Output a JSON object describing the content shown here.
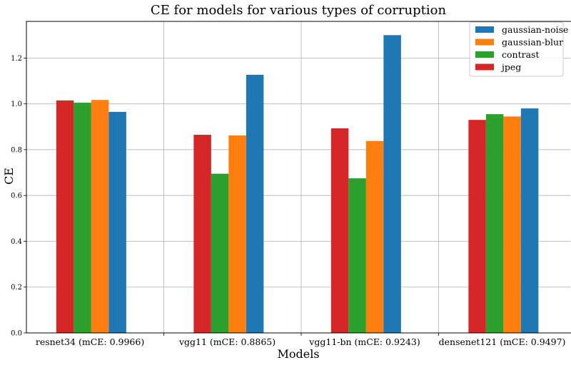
{
  "chart_data": {
    "type": "bar",
    "title": "CE for models for various types of corruption",
    "xlabel": "Models",
    "ylabel": "CE",
    "ylim": [
      0,
      1.36
    ],
    "yticks": [
      "0.0",
      "0.2",
      "0.4",
      "0.6",
      "0.8",
      "1.0",
      "1.2"
    ],
    "grid": true,
    "legend_position": "top-right",
    "categories": [
      "resnet34 (mCE: 0.9966)",
      "vgg11 (mCE: 0.8865)",
      "vgg11-bn  (mCE: 0.9243)",
      "densenet121 (mCE: 0.9497)"
    ],
    "series": [
      {
        "name": "jpeg",
        "color": "#d62728",
        "values": [
          1.015,
          0.865,
          0.893,
          0.93
        ]
      },
      {
        "name": "contrast",
        "color": "#2ca02c",
        "values": [
          1.005,
          0.695,
          0.675,
          0.955
        ]
      },
      {
        "name": "gaussian-blur",
        "color": "#ff7f0e",
        "values": [
          1.017,
          0.862,
          0.838,
          0.945
        ]
      },
      {
        "name": "gaussian-noise",
        "color": "#1f77b4",
        "values": [
          0.965,
          1.127,
          1.3,
          0.98
        ]
      }
    ],
    "legend_order": [
      "gaussian-noise",
      "gaussian-blur",
      "contrast",
      "jpeg"
    ]
  }
}
